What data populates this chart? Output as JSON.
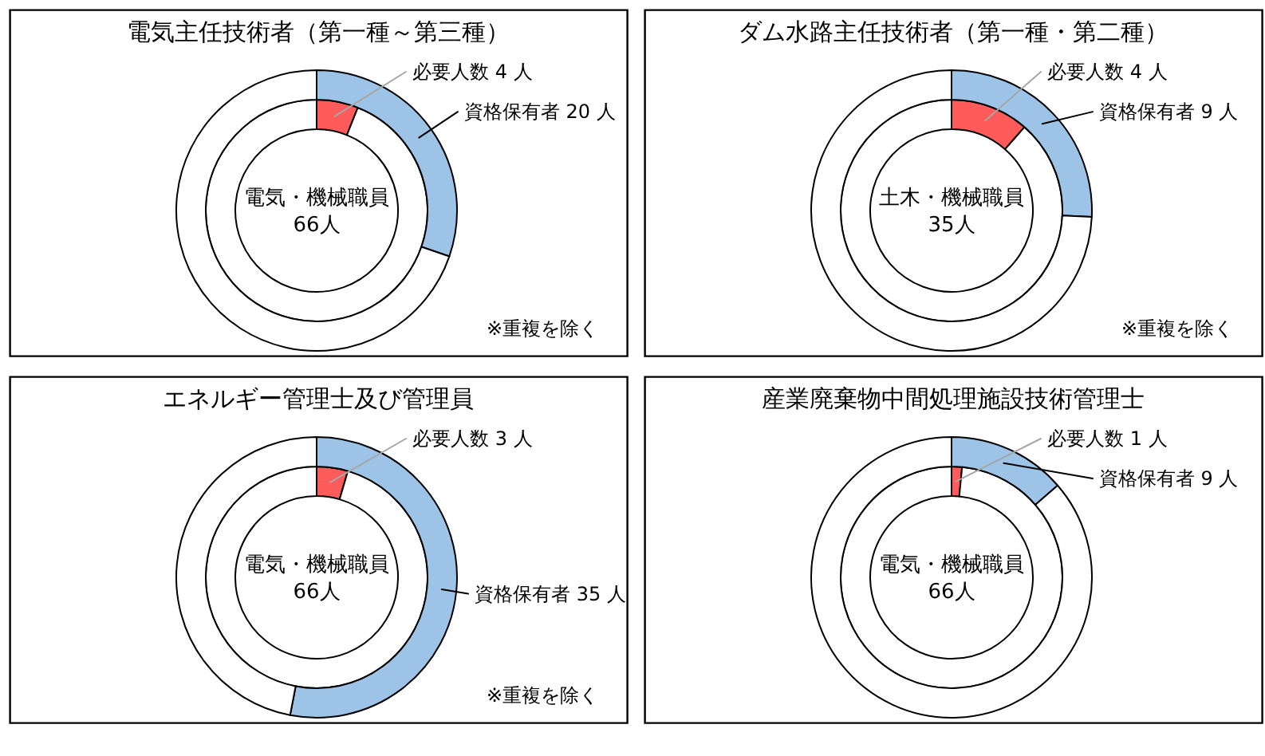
{
  "chart_data": [
    {
      "type": "donut",
      "title": "電気主任技術者（第一種～第三種）",
      "series": [
        {
          "values": [
            4,
            62
          ],
          "colors": [
            "#ff5b5b",
            "#ffffff"
          ],
          "value_labels": [
            "必要人数 4 人",
            null
          ]
        },
        {
          "values": [
            20,
            46
          ],
          "colors": [
            "#9dc3e6",
            "#ffffff"
          ],
          "value_labels": [
            "資格保有者 20 人",
            null
          ]
        }
      ],
      "annotations": [
        "電気・機械職員",
        "66人",
        "※重複を除く"
      ]
    },
    {
      "type": "donut",
      "title": "ダム水路主任技術者（第一種・第二種）",
      "series": [
        {
          "values": [
            4,
            31
          ],
          "colors": [
            "#ff5b5b",
            "#ffffff"
          ],
          "value_labels": [
            "必要人数 4 人",
            null
          ]
        },
        {
          "values": [
            9,
            26
          ],
          "colors": [
            "#9dc3e6",
            "#ffffff"
          ],
          "value_labels": [
            "資格保有者 9 人",
            null
          ]
        }
      ],
      "annotations": [
        "土木・機械職員",
        "35人",
        "※重複を除く"
      ]
    },
    {
      "type": "donut",
      "title": "エネルギー管理士及び管理員",
      "series": [
        {
          "values": [
            3,
            63
          ],
          "colors": [
            "#ff5b5b",
            "#ffffff"
          ],
          "value_labels": [
            "必要人数 3 人",
            null
          ]
        },
        {
          "values": [
            35,
            31
          ],
          "colors": [
            "#9dc3e6",
            "#ffffff"
          ],
          "value_labels": [
            "資格保有者 35 人",
            null
          ]
        }
      ],
      "annotations": [
        "電気・機械職員",
        "66人",
        "※重複を除く"
      ]
    },
    {
      "type": "donut",
      "title": "産業廃棄物中間処理施設技術管理士",
      "series": [
        {
          "values": [
            1,
            65
          ],
          "colors": [
            "#ff5b5b",
            "#ffffff"
          ],
          "value_labels": [
            "必要人数 1 人",
            null
          ]
        },
        {
          "values": [
            9,
            57
          ],
          "colors": [
            "#9dc3e6",
            "#ffffff"
          ],
          "value_labels": [
            "資格保有者 9 人",
            null
          ]
        }
      ],
      "annotations": [
        "電気・機械職員",
        "66人"
      ]
    }
  ]
}
